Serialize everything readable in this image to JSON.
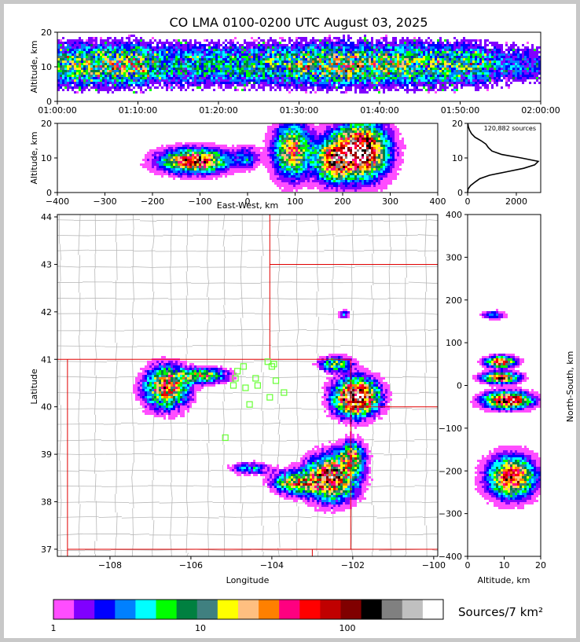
{
  "title": "CO LMA 0100-0200 UTC August 03, 2025",
  "palette": [
    "#ff4dff",
    "#8000ff",
    "#0000ff",
    "#0080ff",
    "#00ffff",
    "#00ff00",
    "#008040",
    "#408080",
    "#ffff00",
    "#ffbf80",
    "#ff8000",
    "#ff0080",
    "#ff0000",
    "#c00000",
    "#800000",
    "#000000",
    "#808080",
    "#c0c0c0",
    "#ffffff"
  ],
  "chart_data": [
    {
      "id": "time-height",
      "type": "heatmap",
      "xlabel": "",
      "ylabel": "Altitude, km",
      "x_ticks": [
        "01:00:00",
        "01:10:00",
        "01:20:00",
        "01:30:00",
        "01:40:00",
        "01:50:00",
        "02:00:00"
      ],
      "y_ticks": [
        "0",
        "10",
        "20"
      ],
      "xlim": [
        0,
        60
      ],
      "ylim": [
        0,
        20
      ],
      "activity": [
        [
          0,
          0.8
        ],
        [
          5,
          0.9
        ],
        [
          10,
          1.0
        ],
        [
          12,
          0.6
        ],
        [
          20,
          0.6
        ],
        [
          26,
          0.7
        ],
        [
          30,
          0.8
        ],
        [
          35,
          1.0
        ],
        [
          42,
          0.9
        ],
        [
          46,
          0.8
        ],
        [
          52,
          0.7
        ],
        [
          55,
          0.4
        ],
        [
          60,
          0.3
        ]
      ]
    },
    {
      "id": "ew-height",
      "type": "heatmap",
      "xlabel": "East-West, km",
      "ylabel": "Altitude, km",
      "x_ticks": [
        "−400",
        "−300",
        "−200",
        "−100",
        "0",
        "100",
        "200",
        "300",
        "400"
      ],
      "y_ticks": [
        "0",
        "10",
        "20"
      ],
      "xlim": [
        -400,
        400
      ],
      "ylim": [
        0,
        20
      ],
      "clusters": [
        {
          "x": -110,
          "y": 9,
          "sx": 45,
          "sy": 2.2,
          "peak": 14
        },
        {
          "x": 0,
          "y": 10,
          "sx": 15,
          "sy": 2,
          "peak": 4
        },
        {
          "x": 95,
          "y": 12,
          "sx": 25,
          "sy": 5,
          "peak": 11
        },
        {
          "x": 180,
          "y": 9,
          "sx": 25,
          "sy": 4,
          "peak": 11
        },
        {
          "x": 240,
          "y": 12,
          "sx": 35,
          "sy": 5,
          "peak": 18
        }
      ]
    },
    {
      "id": "altitude-histogram",
      "type": "line",
      "annotation": "120,882 sources",
      "x_ticks": [
        "0",
        "2000"
      ],
      "y_ticks": [
        "0",
        "10",
        "20"
      ],
      "xlim": [
        0,
        3000
      ],
      "ylim": [
        0,
        20
      ],
      "points": [
        [
          0,
          0
        ],
        [
          20,
          1
        ],
        [
          120,
          2
        ],
        [
          300,
          3
        ],
        [
          500,
          4
        ],
        [
          900,
          5
        ],
        [
          1600,
          6
        ],
        [
          2300,
          7
        ],
        [
          2750,
          8
        ],
        [
          2900,
          9
        ],
        [
          2200,
          10
        ],
        [
          1400,
          11
        ],
        [
          1000,
          12
        ],
        [
          850,
          13
        ],
        [
          750,
          14
        ],
        [
          550,
          15
        ],
        [
          300,
          16
        ],
        [
          160,
          17
        ],
        [
          80,
          18
        ],
        [
          30,
          19
        ],
        [
          10,
          20
        ]
      ]
    },
    {
      "id": "plan-view",
      "type": "heatmap",
      "xlabel": "Longitude",
      "ylabel": "Latitude",
      "x_ticks": [
        "−108",
        "−106",
        "−104",
        "−102",
        "−100"
      ],
      "y_ticks": [
        "37",
        "38",
        "39",
        "40",
        "41",
        "42",
        "43",
        "44"
      ],
      "xlim": [
        -109.3,
        -99.9
      ],
      "ylim": [
        36.85,
        44.05
      ],
      "storms": [
        {
          "lon": -106.6,
          "lat": 40.4,
          "slon": 0.35,
          "slat": 0.28,
          "peak": 12
        },
        {
          "lon": -105.7,
          "lat": 40.65,
          "slon": 0.4,
          "slat": 0.1,
          "peak": 9
        },
        {
          "lon": -102.4,
          "lat": 40.9,
          "slon": 0.25,
          "slat": 0.1,
          "peak": 8
        },
        {
          "lon": -101.9,
          "lat": 40.2,
          "slon": 0.35,
          "slat": 0.25,
          "peak": 18
        },
        {
          "lon": -103.4,
          "lat": 38.4,
          "slon": 0.35,
          "slat": 0.15,
          "peak": 10
        },
        {
          "lon": -102.5,
          "lat": 38.5,
          "slon": 0.4,
          "slat": 0.3,
          "peak": 14
        },
        {
          "lon": -102.0,
          "lat": 38.95,
          "slon": 0.2,
          "slat": 0.2,
          "peak": 9
        },
        {
          "lon": -104.5,
          "lat": 38.7,
          "slon": 0.3,
          "slat": 0.08,
          "peak": 5
        },
        {
          "lon": -102.2,
          "lat": 41.95,
          "slon": 0.1,
          "slat": 0.06,
          "peak": 4
        }
      ],
      "stations": [
        [
          -104.85,
          40.75
        ],
        [
          -104.7,
          40.85
        ],
        [
          -104.4,
          40.6
        ],
        [
          -104.35,
          40.45
        ],
        [
          -104.1,
          40.95
        ],
        [
          -104.0,
          40.85
        ],
        [
          -103.9,
          40.55
        ],
        [
          -103.7,
          40.3
        ],
        [
          -104.05,
          40.2
        ],
        [
          -104.55,
          40.05
        ],
        [
          -104.65,
          40.4
        ],
        [
          -104.95,
          40.45
        ],
        [
          -105.15,
          39.35
        ],
        [
          -104.9,
          40.6
        ],
        [
          -103.95,
          40.9
        ]
      ]
    },
    {
      "id": "height-ns",
      "type": "heatmap",
      "xlabel": "Altitude, km",
      "ylabel": "North-South, km",
      "x_ticks": [
        "0",
        "10",
        "20"
      ],
      "y_ticks": [
        "−400",
        "−300",
        "−200",
        "−100",
        "0",
        "100",
        "200",
        "300",
        "400"
      ],
      "xlim": [
        0,
        20
      ],
      "ylim": [
        -400,
        400
      ],
      "clusters": [
        {
          "x": 9,
          "y": 55,
          "sx": 2.5,
          "sy": 8,
          "peak": 14
        },
        {
          "x": 9,
          "y": 18,
          "sx": 3,
          "sy": 8,
          "peak": 14
        },
        {
          "x": 11,
          "y": -35,
          "sx": 4,
          "sy": 12,
          "peak": 16
        },
        {
          "x": 12,
          "y": -215,
          "sx": 4,
          "sy": 30,
          "peak": 14
        },
        {
          "x": 7,
          "y": 165,
          "sx": 2,
          "sy": 6,
          "peak": 4
        }
      ]
    }
  ],
  "colorbar": {
    "label": "Sources/7 km²",
    "ticks": [
      "1",
      "10",
      "100"
    ]
  }
}
